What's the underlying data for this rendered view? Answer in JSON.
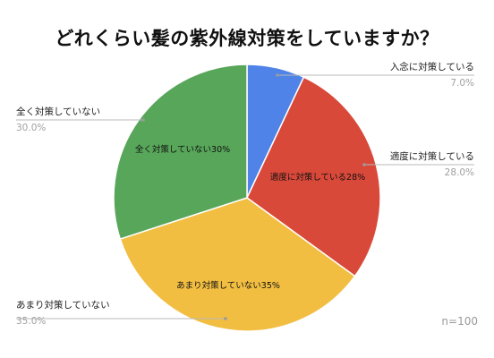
{
  "title": "どれくらい髪の紫外線対策をしていますか？",
  "note": "n=100",
  "chart_data": {
    "type": "pie",
    "title": "どれくらい髪の紫外線対策をしていますか？",
    "labels": [
      "入念に対策している",
      "適度に対策している",
      "あまり対策していない",
      "全く対策していない"
    ],
    "values": [
      7.0,
      28.0,
      35.0,
      30.0
    ],
    "value_labels": [
      "7.0%",
      "28.0%",
      "35.0%",
      "30.0%"
    ],
    "inner_labels": [
      "",
      "適度に対策している28%",
      "あまり対策していない35%",
      "全く対策していない30%"
    ],
    "colors": [
      "#5083e8",
      "#d9493a",
      "#f2be42",
      "#58a65a"
    ],
    "start": "12 o'clock",
    "direction": "clockwise"
  }
}
